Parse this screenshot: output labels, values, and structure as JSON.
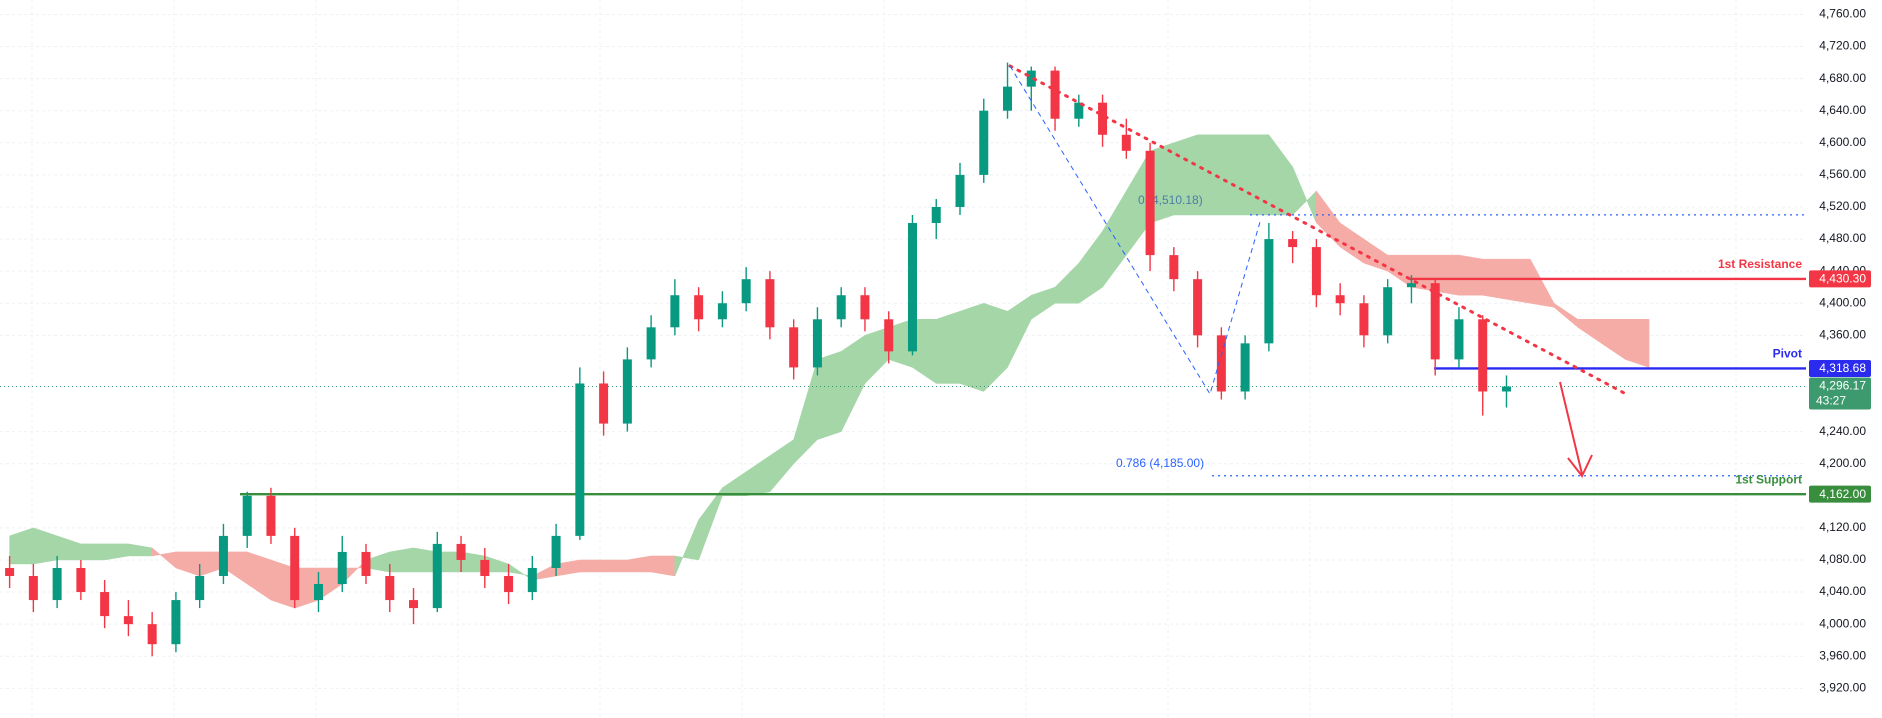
{
  "chart_data": {
    "type": "candlestick",
    "up_color": "#089981",
    "down_color": "#f23645",
    "ylim": [
      3883,
      4778
    ],
    "yticks": [
      {
        "value": 3920,
        "label": "3,920.00"
      },
      {
        "value": 3960,
        "label": "3,960.00"
      },
      {
        "value": 4000,
        "label": "4,000.00"
      },
      {
        "value": 4040,
        "label": "4,040.00"
      },
      {
        "value": 4080,
        "label": "4,080.00"
      },
      {
        "value": 4120,
        "label": "4,120.00"
      },
      {
        "value": 4200,
        "label": "4,200.00"
      },
      {
        "value": 4240,
        "label": "4,240.00"
      },
      {
        "value": 4360,
        "label": "4,360.00"
      },
      {
        "value": 4400,
        "label": "4,400.00"
      },
      {
        "value": 4440,
        "label": "4,440.00"
      },
      {
        "value": 4480,
        "label": "4,480.00"
      },
      {
        "value": 4520,
        "label": "4,520.00"
      },
      {
        "value": 4560,
        "label": "4,560.00"
      },
      {
        "value": 4600,
        "label": "4,600.00"
      },
      {
        "value": 4640,
        "label": "4,640.00"
      },
      {
        "value": 4680,
        "label": "4,680.00"
      },
      {
        "value": 4720,
        "label": "4,720.00"
      },
      {
        "value": 4760,
        "label": "4,760.00"
      }
    ],
    "grid": true,
    "candles": [
      [
        4070,
        4085,
        4045,
        4060
      ],
      [
        4060,
        4075,
        4015,
        4030
      ],
      [
        4030,
        4085,
        4020,
        4070
      ],
      [
        4070,
        4080,
        4030,
        4040
      ],
      [
        4040,
        4055,
        3995,
        4010
      ],
      [
        4010,
        4030,
        3985,
        4000
      ],
      [
        4000,
        4015,
        3960,
        3975
      ],
      [
        3975,
        4040,
        3965,
        4030
      ],
      [
        4030,
        4075,
        4020,
        4060
      ],
      [
        4060,
        4125,
        4050,
        4110
      ],
      [
        4110,
        4165,
        4095,
        4160
      ],
      [
        4160,
        4170,
        4100,
        4110
      ],
      [
        4110,
        4120,
        4020,
        4030
      ],
      [
        4030,
        4065,
        4015,
        4050
      ],
      [
        4050,
        4110,
        4040,
        4090
      ],
      [
        4090,
        4100,
        4050,
        4060
      ],
      [
        4060,
        4075,
        4015,
        4030
      ],
      [
        4030,
        4045,
        4000,
        4020
      ],
      [
        4020,
        4115,
        4015,
        4100
      ],
      [
        4100,
        4110,
        4065,
        4080
      ],
      [
        4080,
        4095,
        4045,
        4060
      ],
      [
        4060,
        4075,
        4025,
        4040
      ],
      [
        4040,
        4085,
        4030,
        4070
      ],
      [
        4070,
        4125,
        4060,
        4110
      ],
      [
        4110,
        4320,
        4105,
        4300
      ],
      [
        4300,
        4315,
        4235,
        4250
      ],
      [
        4250,
        4345,
        4240,
        4330
      ],
      [
        4330,
        4385,
        4320,
        4370
      ],
      [
        4370,
        4430,
        4360,
        4410
      ],
      [
        4410,
        4420,
        4365,
        4380
      ],
      [
        4380,
        4415,
        4370,
        4400
      ],
      [
        4400,
        4445,
        4390,
        4430
      ],
      [
        4430,
        4440,
        4355,
        4370
      ],
      [
        4370,
        4380,
        4305,
        4320
      ],
      [
        4320,
        4395,
        4310,
        4380
      ],
      [
        4380,
        4420,
        4370,
        4410
      ],
      [
        4410,
        4420,
        4365,
        4380
      ],
      [
        4380,
        4390,
        4325,
        4340
      ],
      [
        4340,
        4510,
        4335,
        4500
      ],
      [
        4500,
        4530,
        4480,
        4520
      ],
      [
        4520,
        4575,
        4510,
        4560
      ],
      [
        4560,
        4655,
        4550,
        4640
      ],
      [
        4640,
        4700,
        4630,
        4670
      ],
      [
        4670,
        4695,
        4640,
        4690
      ],
      [
        4690,
        4695,
        4615,
        4630
      ],
      [
        4630,
        4660,
        4620,
        4650
      ],
      [
        4650,
        4660,
        4595,
        4610
      ],
      [
        4610,
        4630,
        4580,
        4590
      ],
      [
        4590,
        4600,
        4440,
        4460
      ],
      [
        4460,
        4470,
        4415,
        4430
      ],
      [
        4430,
        4440,
        4345,
        4360
      ],
      [
        4360,
        4370,
        4280,
        4290
      ],
      [
        4290,
        4360,
        4280,
        4350
      ],
      [
        4350,
        4500,
        4340,
        4480
      ],
      [
        4480,
        4490,
        4450,
        4470
      ],
      [
        4470,
        4480,
        4395,
        4410
      ],
      [
        4410,
        4425,
        4385,
        4400
      ],
      [
        4400,
        4410,
        4345,
        4360
      ],
      [
        4360,
        4430,
        4350,
        4420
      ],
      [
        4420,
        4435,
        4400,
        4425
      ],
      [
        4425,
        4430,
        4310,
        4330
      ],
      [
        4330,
        4395,
        4320,
        4380
      ],
      [
        4380,
        4385,
        4260,
        4290
      ],
      [
        4290,
        4310,
        4270,
        4296.17
      ]
    ],
    "cloud": {
      "up_color": "#a5d6a7",
      "down_color": "#f5aca6",
      "span_a": [
        4110,
        4120,
        4110,
        4100,
        4100,
        4100,
        4095,
        4070,
        4060,
        4070,
        4050,
        4030,
        4020,
        4030,
        4050,
        4080,
        4090,
        4095,
        4090,
        4090,
        4085,
        4075,
        4055,
        4060,
        4065,
        4065,
        4065,
        4065,
        4060,
        4130,
        4170,
        4190,
        4210,
        4230,
        4330,
        4340,
        4360,
        4370,
        4380,
        4380,
        4390,
        4400,
        4390,
        4410,
        4420,
        4450,
        4490,
        4540,
        4590,
        4600,
        4610,
        4610,
        4610,
        4610,
        4570,
        4500,
        4470,
        4450,
        4440,
        4420,
        4415,
        4410,
        4410,
        4405,
        4400,
        4395,
        4370,
        4350,
        4330,
        4320
      ],
      "span_b": [
        4075,
        4075,
        4080,
        4080,
        4080,
        4085,
        4085,
        4090,
        4090,
        4090,
        4090,
        4080,
        4070,
        4070,
        4070,
        4070,
        4065,
        4065,
        4065,
        4065,
        4065,
        4065,
        4060,
        4075,
        4080,
        4080,
        4080,
        4085,
        4085,
        4080,
        4160,
        4160,
        4165,
        4200,
        4230,
        4240,
        4300,
        4330,
        4320,
        4300,
        4300,
        4290,
        4320,
        4380,
        4400,
        4400,
        4420,
        4460,
        4500,
        4510,
        4510,
        4510,
        4510,
        4510,
        4510,
        4540,
        4500,
        4480,
        4460,
        4460,
        4460,
        4460,
        4455,
        4455,
        4455,
        4400,
        4380,
        4380,
        4380,
        4380
      ]
    },
    "levels": [
      {
        "name": "1st Resistance",
        "value": 4430.3,
        "label": "4,430.30",
        "color": "#f23645"
      },
      {
        "name": "Pivot",
        "value": 4318.68,
        "label": "4,318.68",
        "color": "#2b2bf0"
      },
      {
        "name": "1st Support",
        "value": 4162.0,
        "label": "4,162.00",
        "color": "#388e3c"
      }
    ],
    "fib": [
      {
        "value": 4510.18,
        "label": "0 (4,510.18)"
      },
      {
        "value": 4185.0,
        "label": "0.786 (4,185.00)"
      }
    ],
    "last_price": {
      "value": 4296.17,
      "label": "4,296.17",
      "countdown": "43:27",
      "color": "#3d9a6e"
    }
  }
}
